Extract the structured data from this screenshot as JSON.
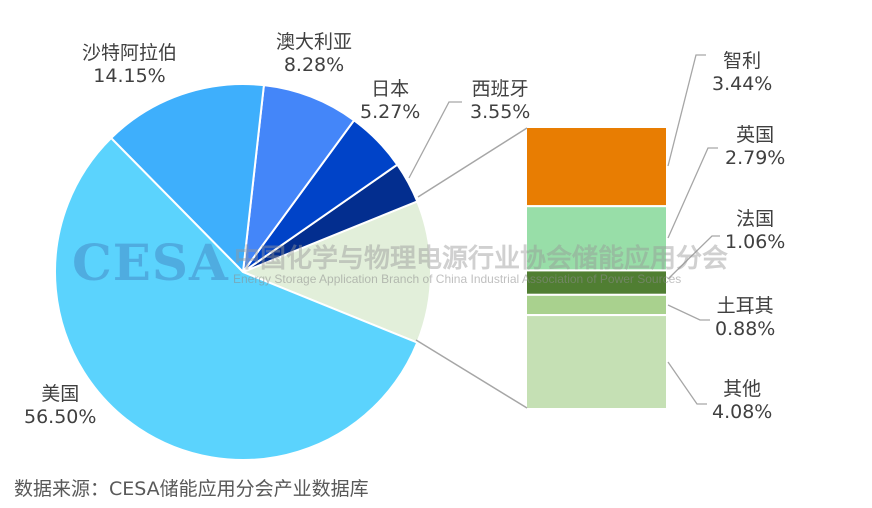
{
  "chart_data": {
    "type": "pie",
    "subtype": "bar-of-pie",
    "title": "",
    "main_pie": [
      {
        "label": "美国",
        "value": 56.5,
        "display": "56.50%",
        "color": "#5BD3FD"
      },
      {
        "label": "沙特阿拉伯",
        "value": 14.15,
        "display": "14.15%",
        "color": "#3EAFFC"
      },
      {
        "label": "澳大利亚",
        "value": 8.28,
        "display": "8.28%",
        "color": "#4486F9"
      },
      {
        "label": "日本",
        "value": 5.27,
        "display": "5.27%",
        "color": "#0043C8"
      },
      {
        "label": "西班牙",
        "value": 3.55,
        "display": "3.55%",
        "color": "#032E8F"
      },
      {
        "label": "其他（汇总）",
        "value": 12.25,
        "display": "",
        "color": "#E2EFDA"
      }
    ],
    "secondary_bar": [
      {
        "label": "智利",
        "value": 3.44,
        "display": "3.44%",
        "color": "#E87D02"
      },
      {
        "label": "英国",
        "value": 2.79,
        "display": "2.79%",
        "color": "#98DEA8"
      },
      {
        "label": "法国",
        "value": 1.06,
        "display": "1.06%",
        "color": "#507E32"
      },
      {
        "label": "土耳其",
        "value": 0.88,
        "display": "0.88%",
        "color": "#A9D18E"
      },
      {
        "label": "其他",
        "value": 4.08,
        "display": "4.08%",
        "color": "#C5E0B4"
      }
    ],
    "legend": "none",
    "data_labels": "category name and percentage"
  },
  "labels": {
    "us": {
      "name": "美国",
      "pct": "56.50%"
    },
    "saudi": {
      "name": "沙特阿拉伯",
      "pct": "14.15%"
    },
    "australia": {
      "name": "澳大利亚",
      "pct": "8.28%"
    },
    "japan": {
      "name": "日本",
      "pct": "5.27%"
    },
    "spain": {
      "name": "西班牙",
      "pct": "3.55%"
    },
    "chile": {
      "name": "智利",
      "pct": "3.44%"
    },
    "uk": {
      "name": "英国",
      "pct": "2.79%"
    },
    "france": {
      "name": "法国",
      "pct": "1.06%"
    },
    "turkey": {
      "name": "土耳其",
      "pct": "0.88%"
    },
    "others": {
      "name": "其他",
      "pct": "4.08%"
    }
  },
  "watermark": {
    "logo": "CESA",
    "cn": "中国化学与物理电源行业协会储能应用分会",
    "en": "Energy Storage Application Branch of China Industrial Association of Power Sources"
  },
  "source": "数据来源：CESA储能应用分会产业数据库"
}
